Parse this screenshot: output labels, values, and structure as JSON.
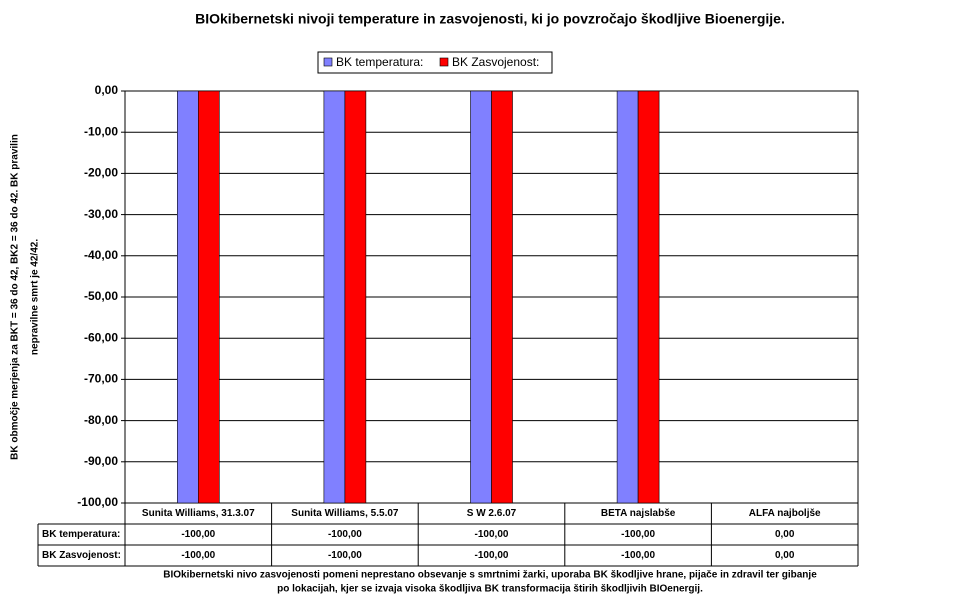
{
  "chart_data": {
    "type": "bar",
    "title": "BIOkibernetski nivoji temperature in zasvojenosti, ki jo povzročajo škodljive Bioenergije.",
    "y_label": [
      "BK območje merjenja za BKT = 36 do 42, BK2 = 36 do 42. BK pravilin",
      "nepravilne smrt je 42/42."
    ],
    "footnote": [
      "BIOkibernetski nivo zasvojenosti pomeni neprestano obsevanje s smrtnimi žarki, uporaba BK škodljive hrane, pijače in zdravil ter gibanje",
      "po lokacijah, kjer se izvaja visoka škodljiva BK transformacija štirih škodljivih BIOenergij."
    ],
    "categories": [
      "Sunita Williams, 31.3.07",
      "Sunita Williams, 5.5.07",
      "S W   2.6.07",
      "BETA najslabše",
      "ALFA najboljše"
    ],
    "series": [
      {
        "name": "BK temperatura:",
        "color": "#8080ff",
        "values": [
          -100,
          -100,
          -100,
          -100,
          0
        ],
        "value_labels": [
          "-100,00",
          "-100,00",
          "-100,00",
          "-100,00",
          "0,00"
        ]
      },
      {
        "name": "BK Zasvojenost:",
        "color": "#ff0000",
        "values": [
          -100,
          -100,
          -100,
          -100,
          0
        ],
        "value_labels": [
          "-100,00",
          "-100,00",
          "-100,00",
          "-100,00",
          "0,00"
        ]
      }
    ],
    "ylim": [
      -100,
      0
    ],
    "yticks": [
      {
        "value": 0,
        "label": "0,00"
      },
      {
        "value": -10,
        "label": "-10,00"
      },
      {
        "value": -20,
        "label": "-20,00"
      },
      {
        "value": -30,
        "label": "-30,00"
      },
      {
        "value": -40,
        "label": "-40,00"
      },
      {
        "value": -50,
        "label": "-50,00"
      },
      {
        "value": -60,
        "label": "-60,00"
      },
      {
        "value": -70,
        "label": "-70,00"
      },
      {
        "value": -80,
        "label": "-80,00"
      },
      {
        "value": -90,
        "label": "-90,00"
      },
      {
        "value": -100,
        "label": "-100,00"
      }
    ],
    "grid": true
  }
}
